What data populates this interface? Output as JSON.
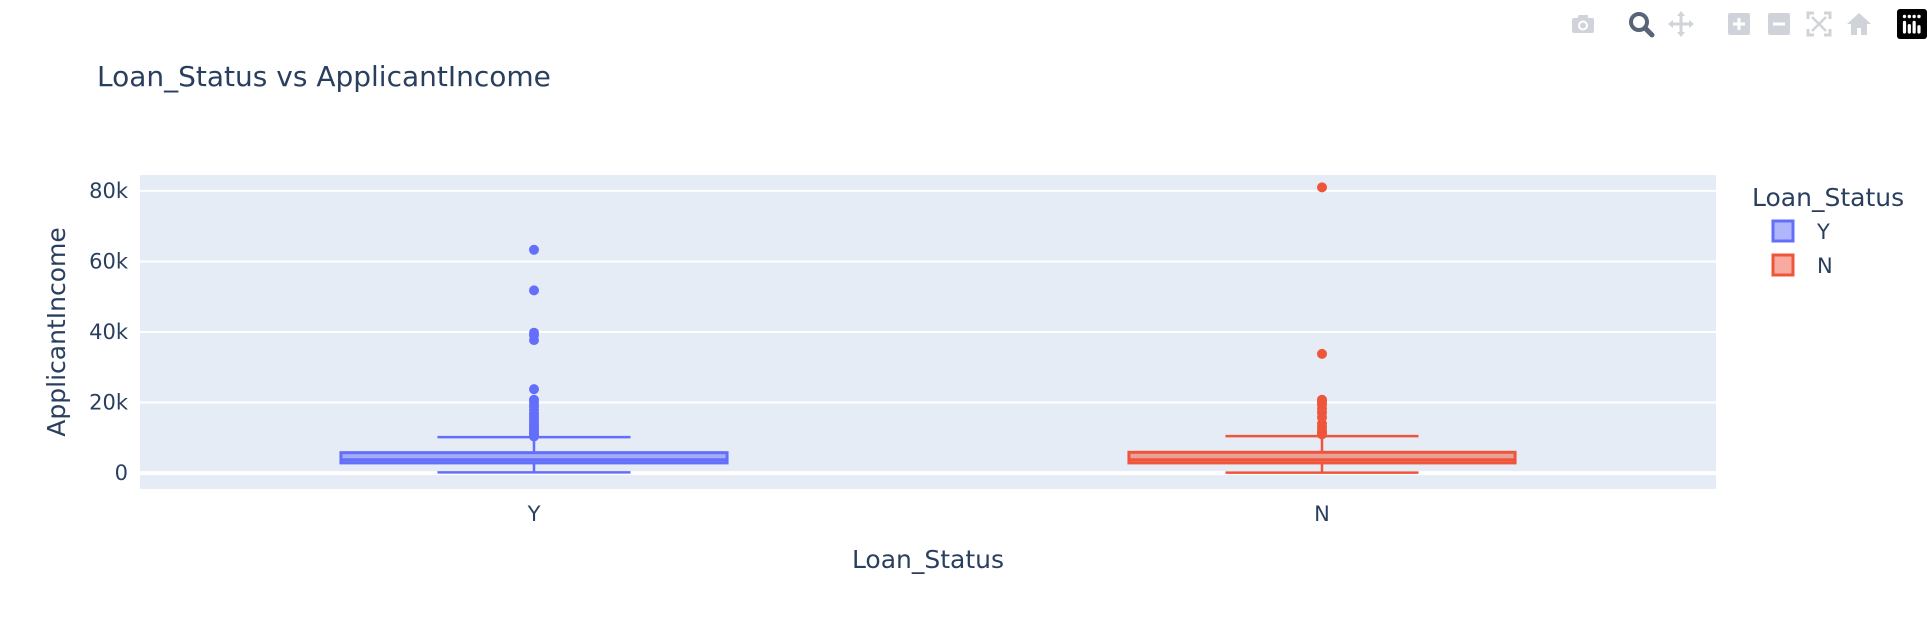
{
  "modebar": {
    "buttons": [
      {
        "icon": "camera-icon",
        "group": 0
      },
      {
        "icon": "zoom-icon",
        "group": 1,
        "active": true
      },
      {
        "icon": "pan-icon",
        "group": 1
      },
      {
        "icon": "zoom-in-icon",
        "group": 2
      },
      {
        "icon": "zoom-out-icon",
        "group": 2
      },
      {
        "icon": "autoscale-icon",
        "group": 2
      },
      {
        "icon": "reset-axes-icon",
        "group": 2
      },
      {
        "icon": "plotly-logo-icon",
        "group": 3
      }
    ],
    "icon_color": "#d0d4da",
    "active_color": "#5a6478"
  },
  "chart_data": {
    "type": "box",
    "title": "Loan_Status vs ApplicantIncome",
    "xlabel": "Loan_Status",
    "ylabel": "ApplicantIncome",
    "categories": [
      "Y",
      "N"
    ],
    "ylim": [
      -4500,
      84500
    ],
    "yticks": [
      0,
      20000,
      40000,
      60000,
      80000
    ],
    "ytick_labels": [
      "0",
      "20k",
      "40k",
      "60k",
      "80k"
    ],
    "grid": true,
    "legend": {
      "title": "Loan_Status",
      "placement": "right"
    },
    "plot_bgcolor": "#e5ecf6",
    "series": [
      {
        "name": "Y",
        "color": "#636efa",
        "fill": "rgba(99,110,250,0.5)",
        "min": 210,
        "q1": 2900,
        "median": 3800,
        "q3": 5800,
        "upper_fence": 10200,
        "outliers": [
          10400,
          10800,
          11200,
          11800,
          12400,
          13000,
          13800,
          14600,
          15400,
          16200,
          17000,
          18000,
          19000,
          20000,
          20800,
          23800,
          37700,
          39100,
          39800,
          51800,
          63300
        ]
      },
      {
        "name": "N",
        "color": "#ef553b",
        "fill": "rgba(239,85,59,0.5)",
        "min": 150,
        "q1": 2900,
        "median": 3800,
        "q3": 5900,
        "upper_fence": 10500,
        "outliers": [
          11000,
          11500,
          12000,
          13000,
          14000,
          15800,
          17200,
          18300,
          19500,
          20200,
          20800,
          33800,
          81000
        ]
      }
    ]
  }
}
